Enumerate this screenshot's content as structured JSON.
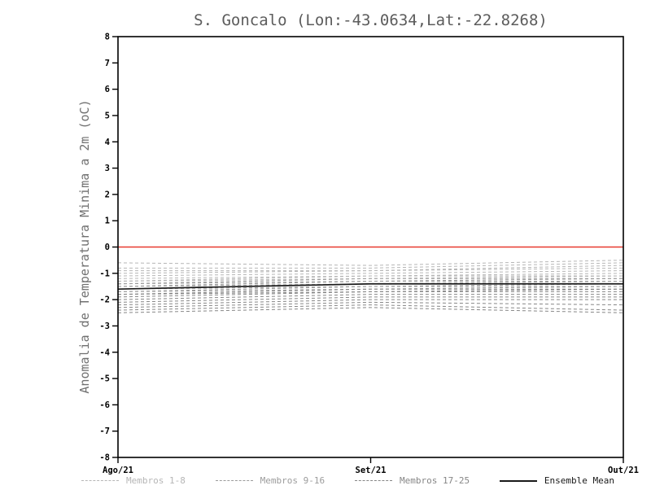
{
  "colors": {
    "zero_line": "#e8392f",
    "axis": "#000000",
    "title": "#5c5c5c",
    "ylabel": "#707070",
    "tick_label": "#000000",
    "mean_line": "#1a1a1a",
    "member_groups": {
      "membros_1_8": "#b6b6b6",
      "membros_9_16": "#9c9c9c",
      "membros_17_25": "#868686"
    }
  },
  "legend": [
    {
      "label": "Membros 1-8",
      "line": "dashed",
      "group": "membros_1_8"
    },
    {
      "label": "Membros 9-16",
      "line": "dashed",
      "group": "membros_9_16"
    },
    {
      "label": "Membros 17-25",
      "line": "dashed",
      "group": "membros_17_25"
    },
    {
      "label": "Ensemble Mean",
      "line": "solid",
      "group": "mean"
    }
  ],
  "chart_data": {
    "type": "line",
    "title": "S. Goncalo (Lon:-43.0634,Lat:-22.8268)",
    "xlabel": "",
    "ylabel": "Anomalia de Temperatura Minima a 2m (oC)",
    "x_categories": [
      "Ago/21",
      "Set/21",
      "Out/21"
    ],
    "ylim": [
      -8,
      8
    ],
    "ytick_step": 1,
    "zero_line": 0,
    "grid": false,
    "legend_position": "bottom",
    "series": [
      {
        "name": "Membro 1",
        "group": "membros_1_8",
        "values": [
          -0.6,
          -0.7,
          -0.5
        ]
      },
      {
        "name": "Membro 2",
        "group": "membros_1_8",
        "values": [
          -0.8,
          -0.8,
          -0.6
        ]
      },
      {
        "name": "Membro 3",
        "group": "membros_1_8",
        "values": [
          -0.9,
          -0.9,
          -0.7
        ]
      },
      {
        "name": "Membro 4",
        "group": "membros_1_8",
        "values": [
          -1.0,
          -0.9,
          -0.8
        ]
      },
      {
        "name": "Membro 5",
        "group": "membros_1_8",
        "values": [
          -1.1,
          -1.0,
          -0.9
        ]
      },
      {
        "name": "Membro 6",
        "group": "membros_1_8",
        "values": [
          -1.2,
          -1.1,
          -1.0
        ]
      },
      {
        "name": "Membro 7",
        "group": "membros_1_8",
        "values": [
          -1.3,
          -1.1,
          -1.1
        ]
      },
      {
        "name": "Membro 8",
        "group": "membros_1_8",
        "values": [
          -1.3,
          -1.2,
          -1.1
        ]
      },
      {
        "name": "Membro 9",
        "group": "membros_9_16",
        "values": [
          -1.4,
          -1.2,
          -1.2
        ]
      },
      {
        "name": "Membro 10",
        "group": "membros_9_16",
        "values": [
          -1.4,
          -1.3,
          -1.2
        ]
      },
      {
        "name": "Membro 11",
        "group": "membros_9_16",
        "values": [
          -1.5,
          -1.3,
          -1.3
        ]
      },
      {
        "name": "Membro 12",
        "group": "membros_9_16",
        "values": [
          -1.5,
          -1.4,
          -1.3
        ]
      },
      {
        "name": "Membro 13",
        "group": "membros_9_16",
        "values": [
          -1.6,
          -1.4,
          -1.4
        ]
      },
      {
        "name": "Membro 14",
        "group": "membros_9_16",
        "values": [
          -1.6,
          -1.5,
          -1.4
        ]
      },
      {
        "name": "Membro 15",
        "group": "membros_9_16",
        "values": [
          -1.7,
          -1.5,
          -1.5
        ]
      },
      {
        "name": "Membro 16",
        "group": "membros_9_16",
        "values": [
          -1.7,
          -1.6,
          -1.5
        ]
      },
      {
        "name": "Membro 17",
        "group": "membros_17_25",
        "values": [
          -1.8,
          -1.6,
          -1.6
        ]
      },
      {
        "name": "Membro 18",
        "group": "membros_17_25",
        "values": [
          -1.8,
          -1.7,
          -1.6
        ]
      },
      {
        "name": "Membro 19",
        "group": "membros_17_25",
        "values": [
          -1.9,
          -1.7,
          -1.7
        ]
      },
      {
        "name": "Membro 20",
        "group": "membros_17_25",
        "values": [
          -2.0,
          -1.8,
          -1.8
        ]
      },
      {
        "name": "Membro 21",
        "group": "membros_17_25",
        "values": [
          -2.1,
          -1.9,
          -1.9
        ]
      },
      {
        "name": "Membro 22",
        "group": "membros_17_25",
        "values": [
          -2.2,
          -2.0,
          -2.0
        ]
      },
      {
        "name": "Membro 23",
        "group": "membros_17_25",
        "values": [
          -2.3,
          -2.1,
          -2.2
        ]
      },
      {
        "name": "Membro 24",
        "group": "membros_17_25",
        "values": [
          -2.4,
          -2.2,
          -2.4
        ]
      },
      {
        "name": "Membro 25",
        "group": "membros_17_25",
        "values": [
          -2.5,
          -2.3,
          -2.5
        ]
      },
      {
        "name": "Ensemble Mean",
        "group": "mean",
        "values": [
          -1.6,
          -1.4,
          -1.4
        ]
      }
    ]
  }
}
